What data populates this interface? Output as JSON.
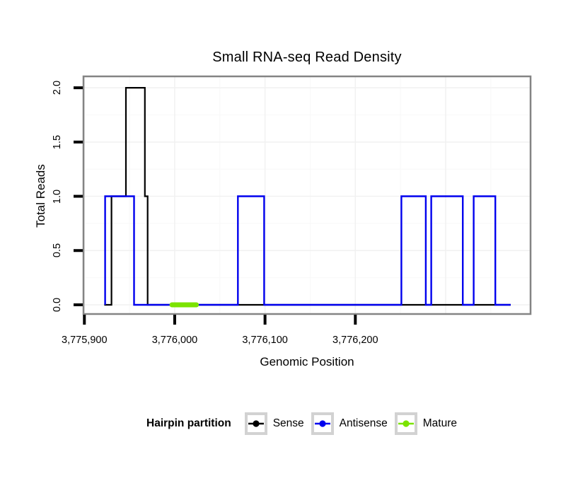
{
  "title": "Small RNA-seq Read Density",
  "x_axis": {
    "label": "Genomic Position",
    "ticks": [
      {
        "value": 3775900,
        "label": "3,775,900"
      },
      {
        "value": 3776000,
        "label": "3,776,000"
      },
      {
        "value": 3776100,
        "label": "3,776,100"
      },
      {
        "value": 3776200,
        "label": "3,776,200"
      }
    ]
  },
  "y_axis": {
    "label": "Total Reads",
    "ticks": [
      {
        "value": 0.0,
        "label": "0.0"
      },
      {
        "value": 0.5,
        "label": "0.5"
      },
      {
        "value": 1.0,
        "label": "1.0"
      },
      {
        "value": 1.5,
        "label": "1.5"
      },
      {
        "value": 2.0,
        "label": "2.0"
      }
    ]
  },
  "legend": {
    "title": "Hairpin partition",
    "items": [
      {
        "label": "Sense",
        "color": "#000000"
      },
      {
        "label": "Antisense",
        "color": "#0000EE"
      },
      {
        "label": "Mature",
        "color": "#7BE300"
      }
    ]
  },
  "colors": {
    "panel_border": "#848484",
    "tick_mark": "#000000",
    "grid_major": "#F1F1F1",
    "grid_minor": "#F8F8F8",
    "legend_key_border": "#D2D2D2",
    "sense": "#000000",
    "antisense": "#0000EE",
    "mature": "#7BE300"
  },
  "chart_data": {
    "type": "line",
    "subtype": "step-density",
    "title": "Small RNA-seq Read Density",
    "xlabel": "Genomic Position",
    "ylabel": "Total Reads",
    "x_range": [
      3775899,
      3776394
    ],
    "y_range": [
      -0.085,
      2.105
    ],
    "grid": {
      "major_x": [
        3775900,
        3776000,
        3776100,
        3776200,
        3776300
      ],
      "minor_x": [
        3775950,
        3776050,
        3776150,
        3776250,
        3776350
      ],
      "major_y": [
        0,
        0.5,
        1,
        1.5,
        2
      ],
      "minor_y": [
        0.25,
        0.75,
        1.25,
        1.75
      ]
    },
    "series": [
      {
        "name": "Sense",
        "color": "#000000",
        "stroke_width": 2.2,
        "vertices": [
          [
            3775922,
            0
          ],
          [
            3775930,
            0
          ],
          [
            3775930,
            1
          ],
          [
            3775946,
            1
          ],
          [
            3775946,
            2
          ],
          [
            3775967,
            2
          ],
          [
            3775967,
            1
          ],
          [
            3775970,
            1
          ],
          [
            3775970,
            0
          ],
          [
            3776372,
            0
          ]
        ]
      },
      {
        "name": "Antisense",
        "color": "#0000EE",
        "stroke_width": 2.4,
        "vertices": [
          [
            3775923,
            0
          ],
          [
            3775923,
            1
          ],
          [
            3775955,
            1
          ],
          [
            3775955,
            0
          ],
          [
            3776070,
            0
          ],
          [
            3776070,
            1
          ],
          [
            3776099,
            1
          ],
          [
            3776099,
            0
          ],
          [
            3776251,
            0
          ],
          [
            3776251,
            1
          ],
          [
            3776278,
            1
          ],
          [
            3776278,
            0
          ],
          [
            3776284,
            0
          ],
          [
            3776284,
            1
          ],
          [
            3776319,
            1
          ],
          [
            3776319,
            0
          ],
          [
            3776331,
            0
          ],
          [
            3776331,
            1
          ],
          [
            3776355,
            1
          ],
          [
            3776355,
            0
          ],
          [
            3776372,
            0
          ]
        ]
      },
      {
        "name": "Mature",
        "color": "#7BE300",
        "stroke_width": 7,
        "linecap": "round",
        "vertices": [
          [
            3775997,
            0
          ],
          [
            3776024,
            0
          ]
        ]
      }
    ]
  }
}
